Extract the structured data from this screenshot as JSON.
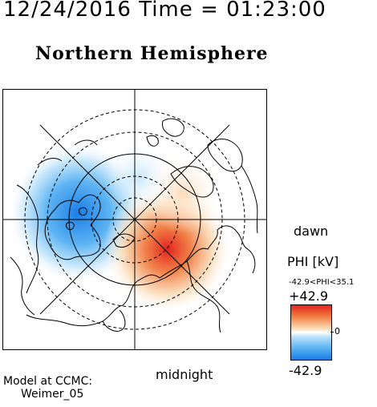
{
  "header": {
    "datetime": "12/24/2016 Time = 01:23:00"
  },
  "map": {
    "title": "Northern Hemisphere",
    "bottom_label": "midnight",
    "right_label": "dawn",
    "pattern": "two-cell convection potential: negative (blue) cell on dusk/pre-noon side, positive (red) cell on dawn/post-midnight side",
    "colors": {
      "negative": "#1a7de6",
      "positive": "#e2231f",
      "land_outline": "#000000",
      "grid": "#000000"
    }
  },
  "legend": {
    "title": "PHI [kV]",
    "range_text": "-42.9<PHI<35.1",
    "max_label": "+42.9",
    "min_label": "-42.9",
    "zero_label": "0",
    "colors": [
      "#e2231f",
      "#f07a3e",
      "#fbd9b2",
      "#ffffff",
      "#b9e1fb",
      "#55b0f2",
      "#1a7de6"
    ]
  },
  "credit": {
    "line1": "Model at CCMC:",
    "line2": "Weimer_05"
  }
}
